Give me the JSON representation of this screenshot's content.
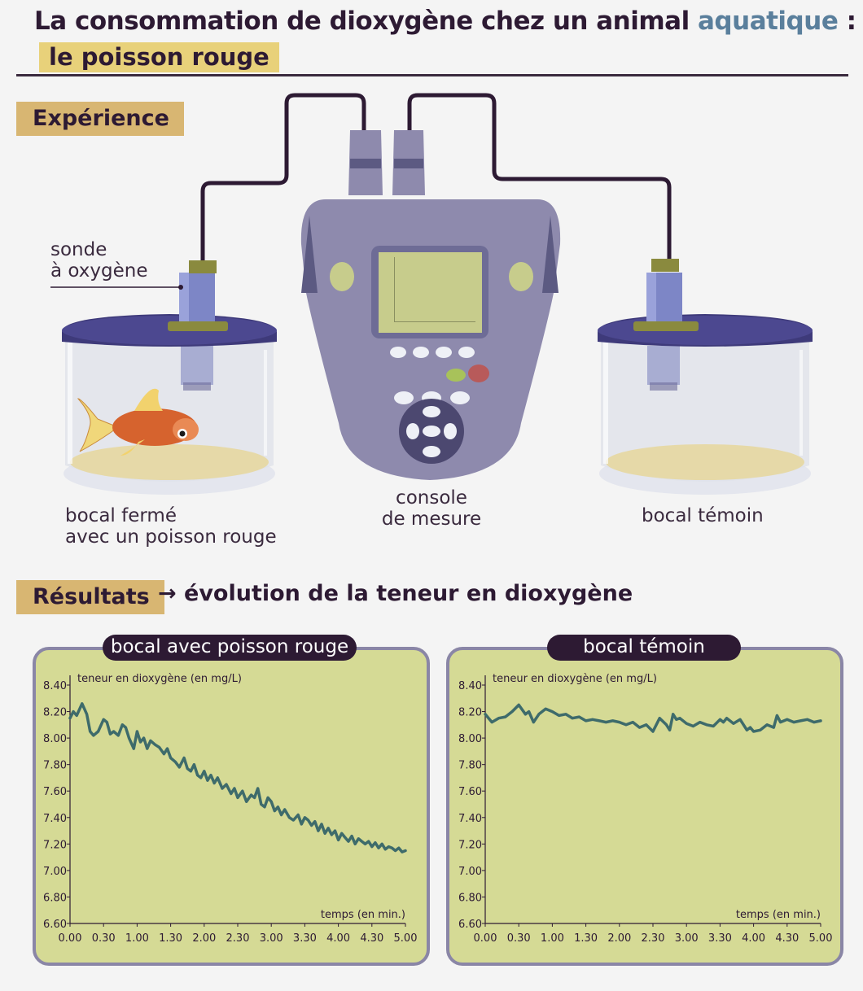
{
  "header": {
    "title_main": "La consommation de dioxygène chez un animal",
    "title_accent": "aquatique",
    "title_colon": " :",
    "subtitle": "le poisson rouge"
  },
  "experience": {
    "tag": "Expérience",
    "probe_label_line1": "sonde",
    "probe_label_line2": "à oxygène",
    "jar_fish_line1": "bocal fermé",
    "jar_fish_line2": "avec un poisson rouge",
    "console_line1": "console",
    "console_line2": "de mesure",
    "jar_control": "bocal témoin"
  },
  "results": {
    "tag": "Résultats",
    "description": "→ évolution de la teneur en dioxygène"
  },
  "colors": {
    "accent_blue": "#5a7f9c",
    "tag_gold": "#d8b672",
    "subtitle_yellow": "#e8d17a",
    "panel_green": "#d5da95",
    "panel_border": "#8a86a6",
    "line_color": "#3e6b6b",
    "device_purple": "#8e8aad",
    "dark": "#2d1a33"
  },
  "chart_data": [
    {
      "type": "line",
      "title": "bocal avec poisson rouge",
      "ylabel": "teneur en dioxygène (en mg/L)",
      "xlabel": "temps (en min.)",
      "xlim": [
        0,
        5
      ],
      "ylim": [
        6.6,
        8.4
      ],
      "yticks": [
        "8.40",
        "8.20",
        "8.00",
        "7.80",
        "7.60",
        "7.40",
        "7.20",
        "7.00",
        "6.80",
        "6.60"
      ],
      "xticks": [
        "0.00",
        "0.30",
        "1.00",
        "1.30",
        "2.00",
        "2.30",
        "3.00",
        "3.30",
        "4.00",
        "4.30",
        "5.00"
      ],
      "grid": false,
      "x": [
        0,
        0.05,
        0.1,
        0.18,
        0.25,
        0.3,
        0.35,
        0.42,
        0.5,
        0.55,
        0.6,
        0.65,
        0.72,
        0.78,
        0.83,
        0.88,
        0.95,
        1.0,
        1.05,
        1.1,
        1.15,
        1.2,
        1.27,
        1.33,
        1.4,
        1.45,
        1.5,
        1.57,
        1.63,
        1.7,
        1.75,
        1.8,
        1.85,
        1.9,
        1.95,
        2.0,
        2.05,
        2.1,
        2.15,
        2.2,
        2.27,
        2.33,
        2.4,
        2.45,
        2.5,
        2.57,
        2.63,
        2.7,
        2.75,
        2.8,
        2.85,
        2.9,
        2.95,
        3.0,
        3.05,
        3.1,
        3.15,
        3.2,
        3.27,
        3.33,
        3.4,
        3.45,
        3.5,
        3.55,
        3.6,
        3.65,
        3.7,
        3.75,
        3.8,
        3.85,
        3.9,
        3.95,
        4.0,
        4.05,
        4.1,
        4.15,
        4.2,
        4.25,
        4.3,
        4.35,
        4.4,
        4.45,
        4.5,
        4.55,
        4.6,
        4.65,
        4.7,
        4.75,
        4.8,
        4.85,
        4.9,
        4.95,
        5.0
      ],
      "y": [
        8.15,
        8.2,
        8.17,
        8.26,
        8.18,
        8.05,
        8.02,
        8.05,
        8.14,
        8.12,
        8.03,
        8.05,
        8.02,
        8.1,
        8.08,
        8.0,
        7.92,
        8.05,
        7.97,
        8.0,
        7.92,
        7.98,
        7.95,
        7.93,
        7.88,
        7.92,
        7.85,
        7.82,
        7.78,
        7.85,
        7.77,
        7.75,
        7.8,
        7.72,
        7.7,
        7.75,
        7.68,
        7.72,
        7.66,
        7.7,
        7.62,
        7.65,
        7.58,
        7.62,
        7.55,
        7.6,
        7.52,
        7.57,
        7.55,
        7.62,
        7.5,
        7.48,
        7.55,
        7.52,
        7.45,
        7.48,
        7.42,
        7.46,
        7.4,
        7.38,
        7.42,
        7.35,
        7.4,
        7.38,
        7.34,
        7.37,
        7.3,
        7.35,
        7.28,
        7.32,
        7.27,
        7.3,
        7.23,
        7.28,
        7.25,
        7.22,
        7.26,
        7.2,
        7.24,
        7.22,
        7.2,
        7.22,
        7.18,
        7.21,
        7.17,
        7.2,
        7.16,
        7.18,
        7.17,
        7.15,
        7.17,
        7.14,
        7.15
      ]
    },
    {
      "type": "line",
      "title": "bocal témoin",
      "ylabel": "teneur en dioxygène (en mg/L)",
      "xlabel": "temps (en min.)",
      "xlim": [
        0,
        5
      ],
      "ylim": [
        6.6,
        8.4
      ],
      "yticks": [
        "8.40",
        "8.20",
        "8.00",
        "7.80",
        "7.60",
        "7.40",
        "7.20",
        "7.00",
        "6.80",
        "6.60"
      ],
      "xticks": [
        "0.00",
        "0.30",
        "1.00",
        "1.30",
        "2.00",
        "2.30",
        "3.00",
        "3.30",
        "4.00",
        "4.30",
        "5.00"
      ],
      "grid": false,
      "x": [
        0,
        0.1,
        0.2,
        0.3,
        0.4,
        0.5,
        0.6,
        0.65,
        0.72,
        0.8,
        0.9,
        1.0,
        1.1,
        1.2,
        1.3,
        1.4,
        1.5,
        1.6,
        1.7,
        1.8,
        1.9,
        2.0,
        2.1,
        2.2,
        2.3,
        2.4,
        2.5,
        2.6,
        2.7,
        2.75,
        2.8,
        2.85,
        2.9,
        3.0,
        3.1,
        3.2,
        3.3,
        3.4,
        3.5,
        3.55,
        3.6,
        3.7,
        3.8,
        3.9,
        3.95,
        4.0,
        4.1,
        4.2,
        4.3,
        4.35,
        4.4,
        4.5,
        4.6,
        4.7,
        4.8,
        4.9,
        5.0
      ],
      "y": [
        8.18,
        8.12,
        8.15,
        8.16,
        8.2,
        8.25,
        8.18,
        8.2,
        8.12,
        8.18,
        8.22,
        8.2,
        8.17,
        8.18,
        8.15,
        8.16,
        8.13,
        8.14,
        8.13,
        8.12,
        8.13,
        8.12,
        8.1,
        8.12,
        8.08,
        8.1,
        8.05,
        8.15,
        8.1,
        8.06,
        8.18,
        8.14,
        8.15,
        8.11,
        8.09,
        8.12,
        8.1,
        8.09,
        8.14,
        8.12,
        8.15,
        8.11,
        8.14,
        8.06,
        8.08,
        8.05,
        8.06,
        8.1,
        8.08,
        8.17,
        8.12,
        8.14,
        8.12,
        8.13,
        8.14,
        8.12,
        8.13
      ]
    }
  ]
}
